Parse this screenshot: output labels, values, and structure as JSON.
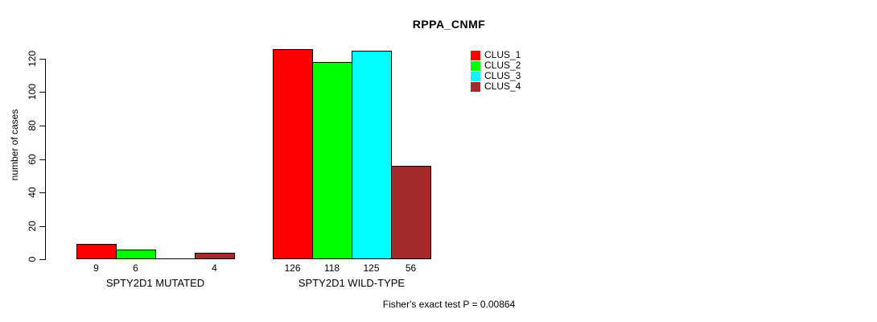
{
  "chart_data": {
    "type": "bar",
    "title": "RPPA_CNMF",
    "xlabel": "",
    "ylabel": "number of cases",
    "categories": [
      "SPTY2D1 MUTATED",
      "SPTY2D1 WILD-TYPE"
    ],
    "series": [
      {
        "name": "CLUS_1",
        "color": "#FF0000",
        "values": [
          9,
          126
        ]
      },
      {
        "name": "CLUS_2",
        "color": "#00FF00",
        "values": [
          6,
          118
        ]
      },
      {
        "name": "CLUS_3",
        "color": "#00FFFF",
        "values": [
          0,
          125
        ]
      },
      {
        "name": "CLUS_4",
        "color": "#A52A2A",
        "values": [
          4,
          56
        ]
      }
    ],
    "ylim": [
      0,
      120
    ],
    "yticks": [
      0,
      20,
      40,
      60,
      80,
      100,
      120
    ],
    "grid": false,
    "legend_position": "top-right",
    "bar_border_color": "#000000",
    "show_value_labels": true,
    "hide_zero_value_labels": true,
    "annotation": "Fisher's exact test P = 0.00864",
    "background_color": "#FFFFFF"
  }
}
